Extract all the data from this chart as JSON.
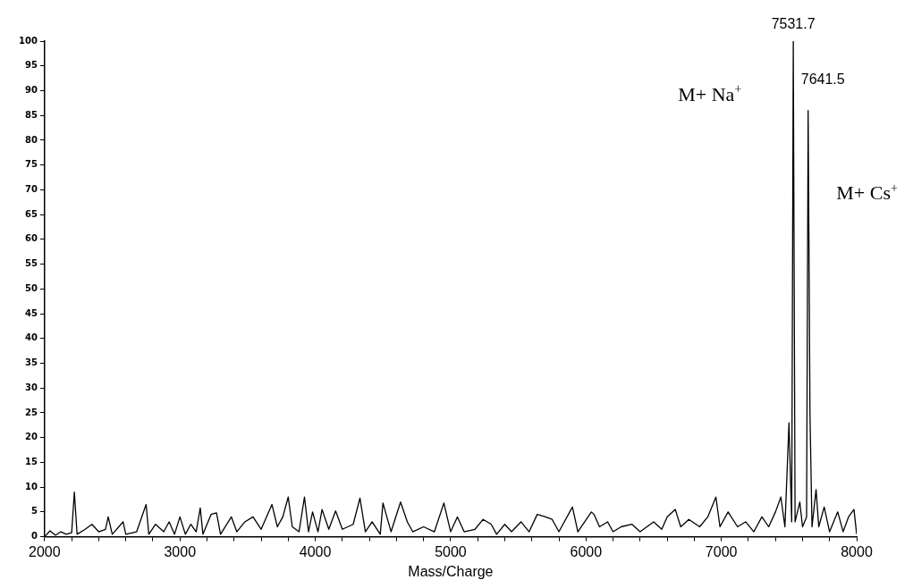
{
  "chart_data": {
    "type": "line",
    "xlabel": "Mass/Charge",
    "x": [
      2000,
      2040,
      2080,
      2120,
      2160,
      2200,
      2220,
      2240,
      2300,
      2350,
      2400,
      2450,
      2470,
      2500,
      2580,
      2600,
      2680,
      2750,
      2770,
      2820,
      2880,
      2920,
      2960,
      3000,
      3040,
      3080,
      3120,
      3150,
      3170,
      3230,
      3270,
      3300,
      3380,
      3420,
      3480,
      3540,
      3600,
      3680,
      3720,
      3760,
      3800,
      3830,
      3880,
      3920,
      3950,
      3980,
      4020,
      4050,
      4100,
      4150,
      4200,
      4280,
      4330,
      4370,
      4420,
      4480,
      4500,
      4560,
      4630,
      4680,
      4720,
      4800,
      4880,
      4950,
      5000,
      5050,
      5100,
      5180,
      5240,
      5300,
      5340,
      5400,
      5450,
      5520,
      5580,
      5640,
      5700,
      5750,
      5800,
      5900,
      5940,
      6040,
      6060,
      6100,
      6160,
      6200,
      6260,
      6340,
      6400,
      6500,
      6560,
      6600,
      6660,
      6700,
      6760,
      6840,
      6900,
      6960,
      6990,
      7050,
      7120,
      7180,
      7240,
      7300,
      7350,
      7400,
      7440,
      7470,
      7500,
      7520,
      7531.7,
      7545,
      7580,
      7600,
      7630,
      7641.5,
      7655,
      7670,
      7700,
      7720,
      7760,
      7800,
      7860,
      7900,
      7940,
      7980,
      8000
    ],
    "series": [
      {
        "color": "#000000",
        "values": [
          0,
          1.2,
          0.3,
          1,
          0.5,
          0.8,
          9,
          0.5,
          1.5,
          2.5,
          1,
          1.5,
          4,
          0.5,
          3,
          0.5,
          1,
          6.5,
          0.5,
          2.5,
          1,
          3,
          0.5,
          4,
          0.5,
          2.5,
          1,
          5.8,
          0.5,
          4.5,
          4.8,
          0.5,
          4,
          1,
          3,
          4,
          1.5,
          6.5,
          2,
          4,
          8,
          2,
          1,
          8,
          1,
          5,
          1,
          5.5,
          1.5,
          5.2,
          1.5,
          2.5,
          7.8,
          1,
          3,
          0.5,
          6.8,
          1,
          7,
          3,
          1,
          2,
          1,
          6.8,
          1,
          4,
          1,
          1.5,
          3.5,
          2.5,
          0.5,
          2.5,
          1,
          3,
          1,
          4.5,
          4,
          3.5,
          1,
          6,
          1,
          5,
          4.5,
          2,
          3,
          1,
          2,
          2.5,
          1,
          3,
          1.5,
          4,
          5.5,
          2,
          3.5,
          2,
          4,
          8,
          2,
          5,
          2,
          3,
          1,
          4,
          2,
          5,
          8,
          2,
          23,
          3,
          100,
          3,
          7,
          2,
          4,
          86,
          25,
          2,
          9.5,
          2,
          6,
          1,
          5,
          1,
          4,
          5.5,
          0.5
        ]
      }
    ],
    "xlim": [
      2000,
      8000
    ],
    "xticks": [
      2000,
      {
        "value": 2200,
        "label": null
      },
      {
        "value": 2400,
        "label": null
      },
      {
        "value": 2600,
        "label": null
      },
      {
        "value": 2800,
        "label": null
      },
      3000,
      {
        "value": 3200,
        "label": null
      },
      {
        "value": 3400,
        "label": null
      },
      {
        "value": 3600,
        "label": null
      },
      {
        "value": 3800,
        "label": null
      },
      4000,
      {
        "value": 4200,
        "label": null
      },
      {
        "value": 4400,
        "label": null
      },
      {
        "value": 4600,
        "label": null
      },
      {
        "value": 4800,
        "label": null
      },
      5000,
      {
        "value": 5200,
        "label": null
      },
      {
        "value": 5400,
        "label": null
      },
      {
        "value": 5600,
        "label": null
      },
      {
        "value": 5800,
        "label": null
      },
      6000,
      {
        "value": 6200,
        "label": null
      },
      {
        "value": 6400,
        "label": null
      },
      {
        "value": 6600,
        "label": null
      },
      {
        "value": 6800,
        "label": null
      },
      7000,
      {
        "value": 7200,
        "label": null
      },
      {
        "value": 7400,
        "label": null
      },
      {
        "value": 7600,
        "label": null
      },
      {
        "value": 7800,
        "label": null
      },
      8000
    ],
    "ylim": [
      0,
      100
    ],
    "yticks": [
      0,
      5,
      10,
      15,
      20,
      25,
      30,
      35,
      40,
      45,
      50,
      55,
      60,
      65,
      70,
      75,
      80,
      85,
      90,
      95,
      100
    ],
    "grid": false,
    "legend": false,
    "marker": "none",
    "line_style": "solid",
    "annotations": [
      {
        "text": "7531.7",
        "x": 7531.7,
        "y": 100
      },
      {
        "text": "7641.5",
        "x": 7641.5,
        "y": 86
      },
      "M+ Na$^{+}$",
      "M+ Cs$^{+}$"
    ]
  }
}
